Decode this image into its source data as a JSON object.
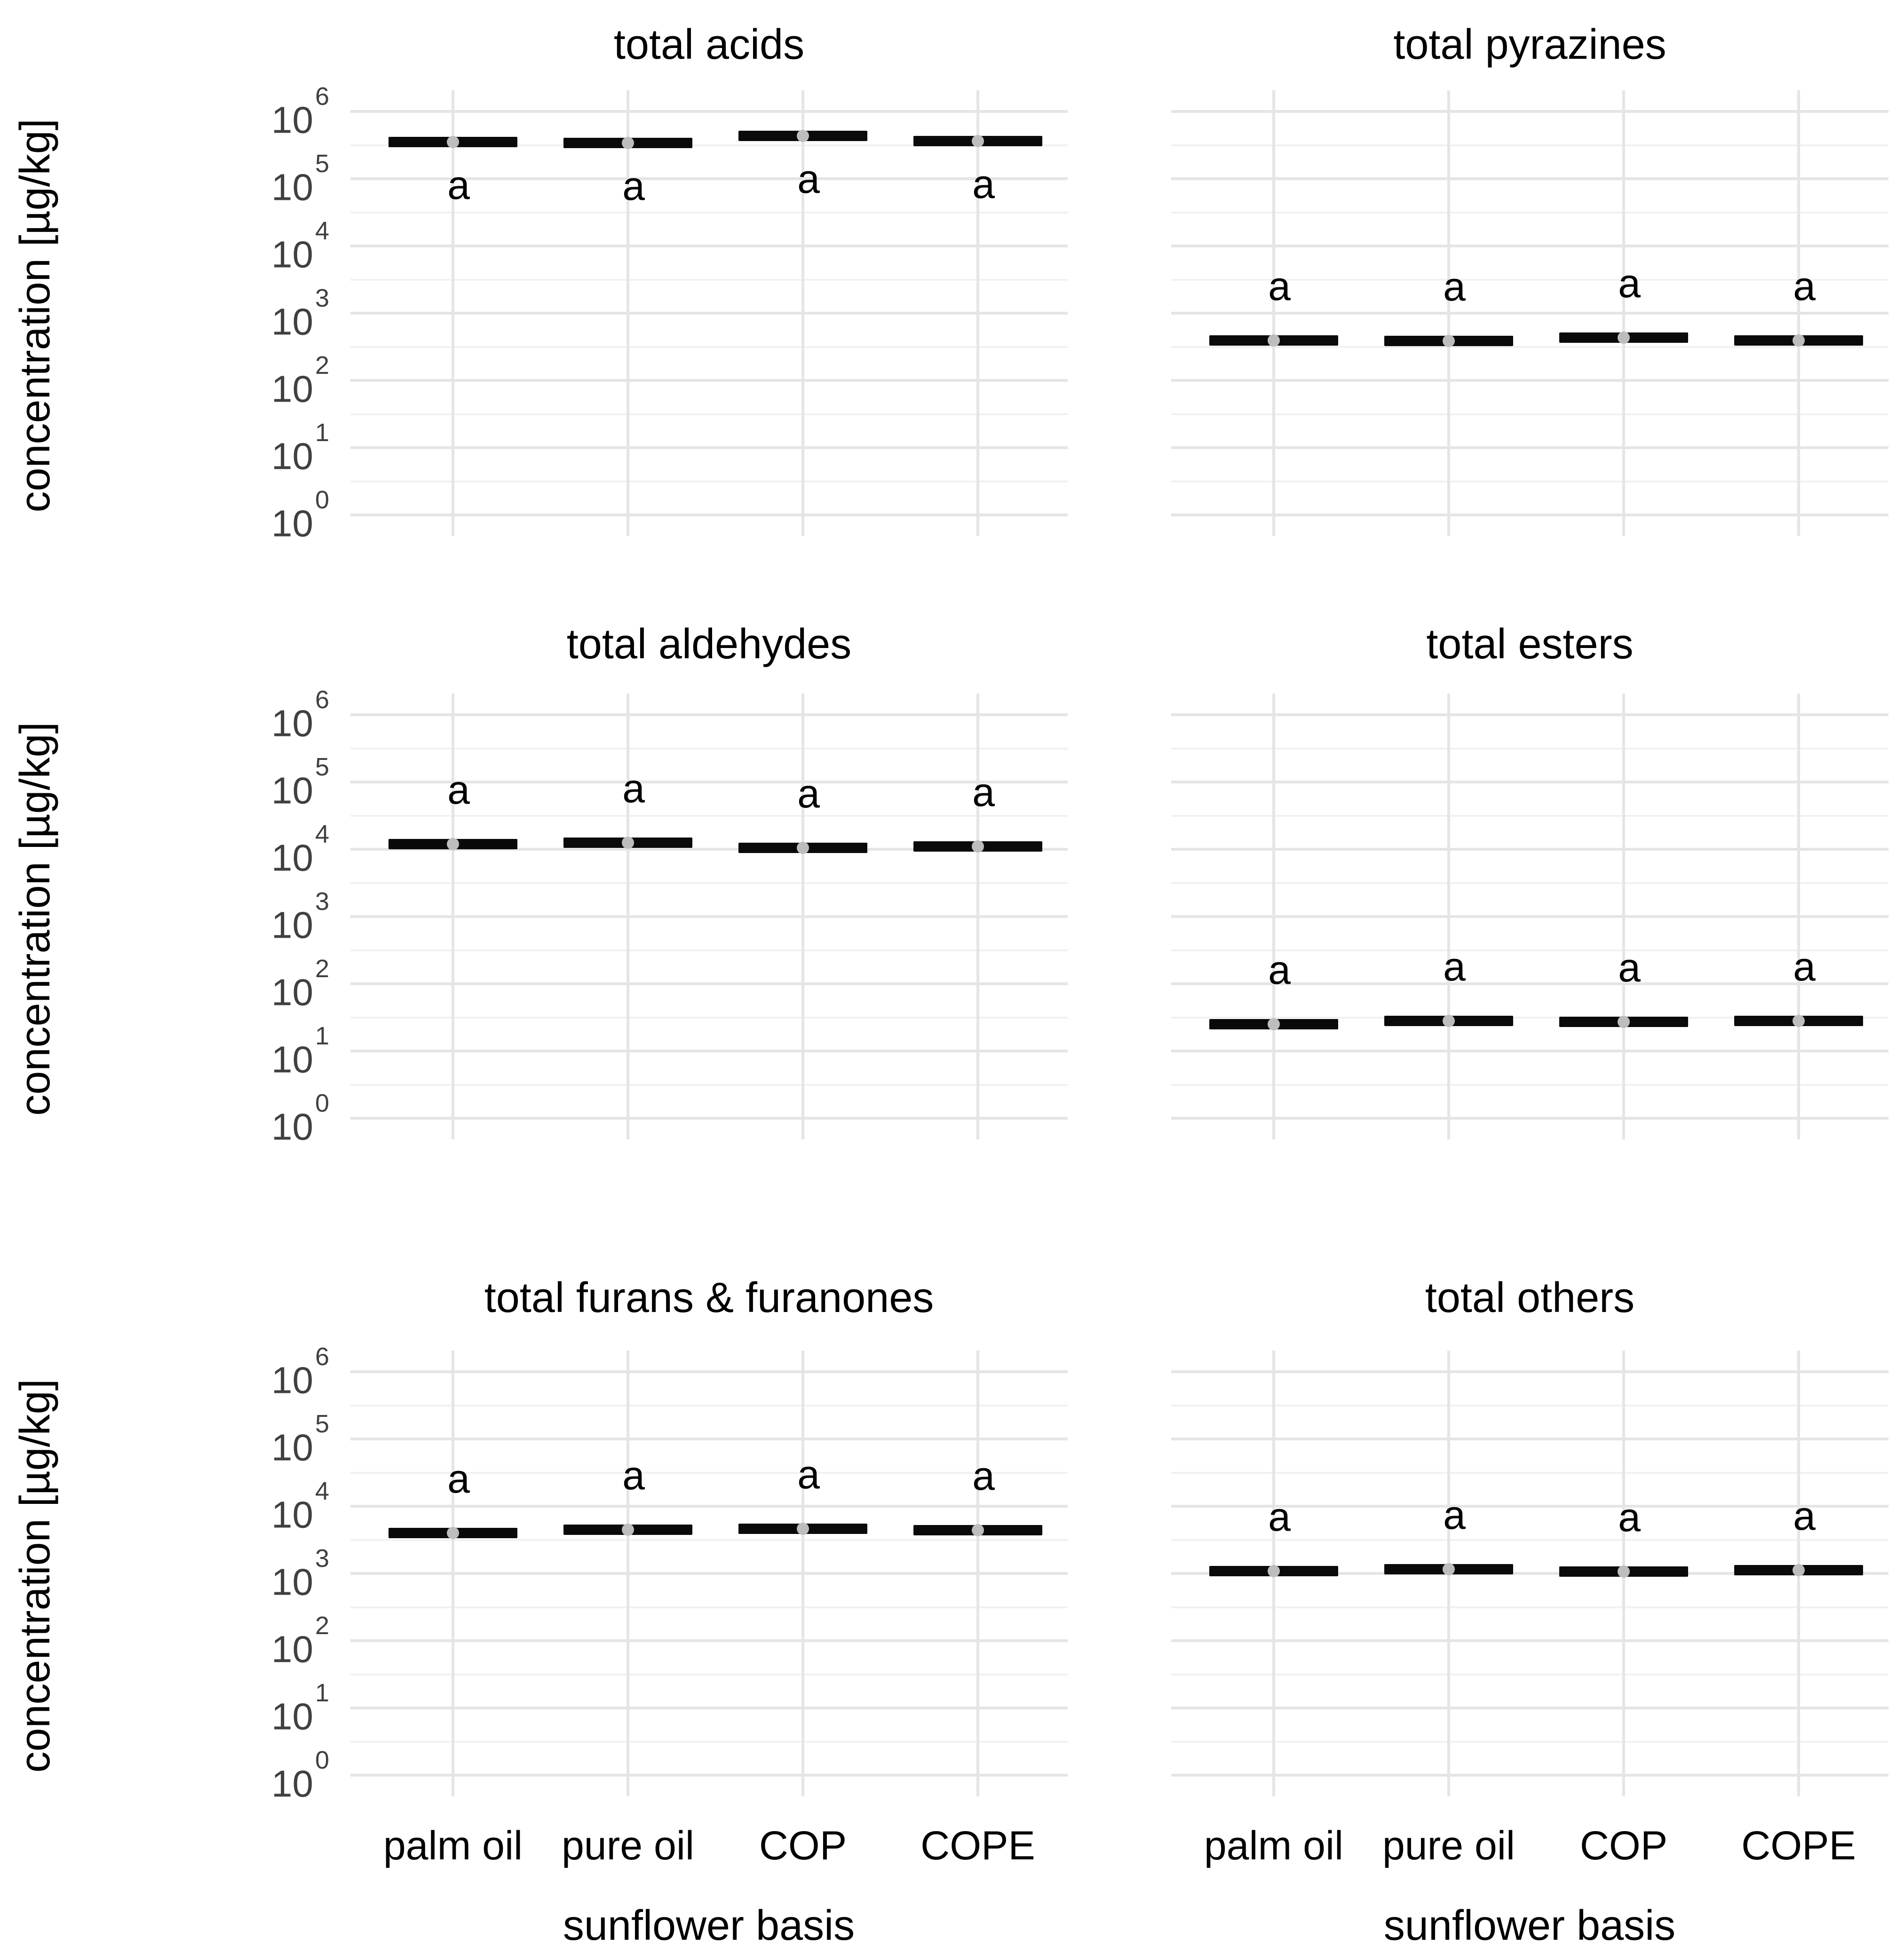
{
  "figure": {
    "background": "#ffffff",
    "colors": {
      "bar": "#0a0a0a",
      "point": "#bdbdbd",
      "grid_major": "#e5e5e5",
      "grid_minor": "#f1f1f1",
      "tick_label": "#404040",
      "text": "#000000"
    }
  },
  "chart_data": {
    "type": "crossbar",
    "layout": "3-rows-2-cols",
    "log_y": true,
    "ylim": [
      1,
      1000000
    ],
    "grid": true,
    "ylabel": "concentration [µg/kg]",
    "xlabel": "sunflower basis",
    "y_tick_mantissa": "10",
    "y_tick_exponents": [
      6,
      5,
      4,
      3,
      2,
      1,
      0
    ],
    "categories": [
      "palm oil",
      "pure oil",
      "COP",
      "COPE"
    ],
    "significance_letter": "a",
    "panels": [
      {
        "title": "total acids",
        "values": [
          350000,
          340000,
          430000,
          360000
        ],
        "letters": [
          "a",
          "a",
          "a",
          "a"
        ],
        "letter_position": "below"
      },
      {
        "title": "total pyrazines",
        "values": [
          390,
          385,
          430,
          395
        ],
        "letters": [
          "a",
          "a",
          "a",
          "a"
        ],
        "letter_position": "above"
      },
      {
        "title": "total aldehydes",
        "values": [
          12000,
          12500,
          10500,
          11000
        ],
        "letters": [
          "a",
          "a",
          "a",
          "a"
        ],
        "letter_position": "above"
      },
      {
        "title": "total esters",
        "values": [
          25,
          28,
          27,
          28
        ],
        "letters": [
          "a",
          "a",
          "a",
          "a"
        ],
        "letter_position": "above"
      },
      {
        "title": "total furans & furanones",
        "values": [
          4000,
          4500,
          4600,
          4400
        ],
        "letters": [
          "a",
          "a",
          "a",
          "a"
        ],
        "letter_position": "above"
      },
      {
        "title": "total others",
        "values": [
          1080,
          1150,
          1070,
          1120
        ],
        "letters": [
          "a",
          "a",
          "a",
          "a"
        ],
        "letter_position": "above"
      }
    ]
  }
}
